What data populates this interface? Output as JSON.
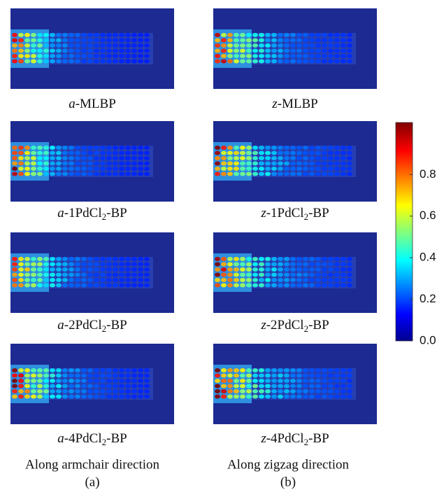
{
  "panels": [
    {
      "prefix": "a",
      "text": "-MLBP"
    },
    {
      "prefix": "z",
      "text": "-MLBP"
    },
    {
      "prefix": "a",
      "text": "-1PdCl",
      "sub": "2",
      "suffix": "-BP"
    },
    {
      "prefix": "z",
      "text": "-1PdCl",
      "sub": "2",
      "suffix": "-BP"
    },
    {
      "prefix": "a",
      "text": "-2PdCl",
      "sub": "2",
      "suffix": "-BP"
    },
    {
      "prefix": "z",
      "text": "-2PdCl",
      "sub": "2",
      "suffix": "-BP"
    },
    {
      "prefix": "a",
      "text": "-4PdCl",
      "sub": "2",
      "suffix": "-BP"
    },
    {
      "prefix": "z",
      "text": "-4PdCl",
      "sub": "2",
      "suffix": "-BP"
    }
  ],
  "columns": [
    {
      "caption": "Along armchair direction",
      "tag": "(a)"
    },
    {
      "caption": "Along zigzag direction",
      "tag": "(b)"
    }
  ],
  "colorbar": {
    "clim": [
      0,
      1.05
    ],
    "ticks": [
      {
        "value": 0,
        "label": "0.0"
      },
      0.2,
      0.4,
      0.6,
      0.8
    ]
  }
}
